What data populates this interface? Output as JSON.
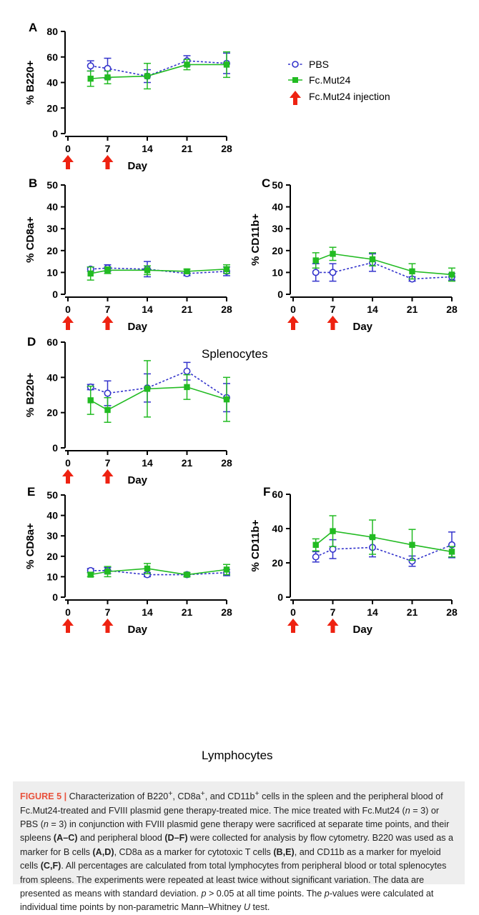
{
  "colors": {
    "pbs": "#3333cc",
    "mut": "#22bb22",
    "arrow": "#ee2211",
    "axis": "#000000"
  },
  "legend": {
    "pbs_label": "PBS",
    "mut_label": "Fc.Mut24",
    "arrow_label": "Fc.Mut24 injection"
  },
  "group_labels": {
    "splenocytes": "Splenocytes",
    "lymphocytes": "Lymphocytes"
  },
  "chart_data": [
    {
      "id": "A",
      "type": "line",
      "title": "",
      "panel_label": "A",
      "xlabel": "Day",
      "ylabel": "% B220+",
      "xticks": [
        0,
        7,
        14,
        21,
        28
      ],
      "yticks": [
        0,
        20,
        40,
        60,
        80
      ],
      "ylim": [
        0,
        80
      ],
      "xlim": [
        0,
        28
      ],
      "injection_days": [
        0,
        7
      ],
      "series": [
        {
          "name": "PBS",
          "x": [
            4,
            7,
            14,
            21,
            28
          ],
          "y": [
            53,
            51,
            45,
            57,
            55
          ],
          "err": [
            4,
            8,
            5,
            4,
            8
          ]
        },
        {
          "name": "Fc.Mut24",
          "x": [
            4,
            7,
            14,
            21,
            28
          ],
          "y": [
            43,
            44,
            45,
            54,
            54
          ],
          "err": [
            6,
            5,
            10,
            4,
            10
          ]
        }
      ]
    },
    {
      "id": "B",
      "type": "line",
      "title": "",
      "panel_label": "B",
      "xlabel": "Day",
      "ylabel": "% CD8a+",
      "xticks": [
        0,
        7,
        14,
        21,
        28
      ],
      "yticks": [
        0,
        10,
        20,
        30,
        40,
        50
      ],
      "ylim": [
        0,
        50
      ],
      "xlim": [
        0,
        28
      ],
      "injection_days": [
        0,
        7
      ],
      "series": [
        {
          "name": "PBS",
          "x": [
            4,
            7,
            14,
            21,
            28
          ],
          "y": [
            11.5,
            12,
            11.5,
            9.5,
            10.5
          ],
          "err": [
            1,
            1.5,
            3.5,
            1,
            2
          ]
        },
        {
          "name": "Fc.Mut24",
          "x": [
            4,
            7,
            14,
            21,
            28
          ],
          "y": [
            9.5,
            11,
            11,
            10.5,
            11.5
          ],
          "err": [
            3,
            1.5,
            2,
            1,
            2
          ]
        }
      ]
    },
    {
      "id": "C",
      "type": "line",
      "title": "",
      "panel_label": "C",
      "xlabel": "Day",
      "ylabel": "% CD11b+",
      "xticks": [
        0,
        7,
        14,
        21,
        28
      ],
      "yticks": [
        0,
        10,
        20,
        30,
        40,
        50
      ],
      "ylim": [
        0,
        50
      ],
      "xlim": [
        0,
        28
      ],
      "injection_days": [
        0,
        7
      ],
      "series": [
        {
          "name": "PBS",
          "x": [
            4,
            7,
            14,
            21,
            28
          ],
          "y": [
            10,
            10,
            14.5,
            7,
            8
          ],
          "err": [
            4,
            4,
            4,
            1,
            1.5
          ]
        },
        {
          "name": "Fc.Mut24",
          "x": [
            4,
            7,
            14,
            21,
            28
          ],
          "y": [
            15.5,
            18.5,
            16,
            10.5,
            9
          ],
          "err": [
            3.5,
            3,
            3,
            3.5,
            3
          ]
        }
      ]
    },
    {
      "id": "D",
      "type": "line",
      "title": "",
      "panel_label": "D",
      "xlabel": "Day",
      "ylabel": "% B220+",
      "xticks": [
        0,
        7,
        14,
        21,
        28
      ],
      "yticks": [
        0,
        20,
        40,
        60
      ],
      "ylim": [
        0,
        60
      ],
      "xlim": [
        0,
        28
      ],
      "injection_days": [
        0,
        7
      ],
      "series": [
        {
          "name": "PBS",
          "x": [
            4,
            7,
            14,
            21,
            28
          ],
          "y": [
            34.5,
            31,
            34,
            43.5,
            28.5
          ],
          "err": [
            1.5,
            7,
            8,
            5,
            8
          ]
        },
        {
          "name": "Fc.Mut24",
          "x": [
            4,
            7,
            14,
            21,
            28
          ],
          "y": [
            27,
            21.5,
            33.5,
            34.5,
            27.5
          ],
          "err": [
            8,
            7,
            16,
            7,
            12.5
          ]
        }
      ]
    },
    {
      "id": "E",
      "type": "line",
      "title": "",
      "panel_label": "E",
      "xlabel": "Day",
      "ylabel": "% CD8a+",
      "xticks": [
        0,
        7,
        14,
        21,
        28
      ],
      "yticks": [
        0,
        10,
        20,
        30,
        40,
        50
      ],
      "ylim": [
        0,
        50
      ],
      "xlim": [
        0,
        28
      ],
      "injection_days": [
        0,
        7
      ],
      "series": [
        {
          "name": "PBS",
          "x": [
            4,
            7,
            14,
            21,
            28
          ],
          "y": [
            13,
            13,
            11,
            11,
            12
          ],
          "err": [
            1,
            1.5,
            1,
            1,
            1.5
          ]
        },
        {
          "name": "Fc.Mut24",
          "x": [
            4,
            7,
            14,
            21,
            28
          ],
          "y": [
            11,
            12.5,
            14,
            11,
            13.5
          ],
          "err": [
            1,
            2.5,
            2.5,
            1,
            2.5
          ]
        }
      ]
    },
    {
      "id": "F",
      "type": "line",
      "title": "",
      "panel_label": "F",
      "xlabel": "Day",
      "ylabel": "% CD11b+",
      "xticks": [
        0,
        7,
        14,
        21,
        28
      ],
      "yticks": [
        0,
        20,
        40,
        60
      ],
      "ylim": [
        0,
        60
      ],
      "xlim": [
        0,
        28
      ],
      "injection_days": [
        0,
        7
      ],
      "series": [
        {
          "name": "PBS",
          "x": [
            4,
            7,
            14,
            21,
            28
          ],
          "y": [
            23.5,
            28,
            29,
            21,
            30.5
          ],
          "err": [
            3,
            5.5,
            5.5,
            3,
            7.5
          ]
        },
        {
          "name": "Fc.Mut24",
          "x": [
            4,
            7,
            14,
            21,
            28
          ],
          "y": [
            30.5,
            38.5,
            35,
            30.5,
            26.5
          ],
          "err": [
            3.5,
            9,
            10,
            9,
            3
          ]
        }
      ]
    }
  ],
  "caption": {
    "fig_label": "FIGURE 5 |",
    "t1": " Characterization of B220",
    "sup1": "+",
    "t2": ", CD8a",
    "sup2": "+",
    "t3": ", and CD11b",
    "sup3": "+",
    "t4": " cells in the spleen and the peripheral blood of Fc.Mut24-treated and FVIII plasmid gene therapy-treated mice. The mice treated with Fc.Mut24 (",
    "n1": "n",
    "t5": " = 3) or PBS (",
    "n2": "n",
    "t6": " = 3) in conjunction with FVIII plasmid gene therapy were sacrificed at separate time points, and their spleens ",
    "b1": "(A–C)",
    "t7": " and peripheral blood ",
    "b2": "(D–F)",
    "t8": " were collected for analysis by flow cytometry. B220 was used as a marker for B cells ",
    "b3": "(A,D)",
    "t9": ", CD8a as a marker for cytotoxic T cells ",
    "b4": "(B,E)",
    "t10": ", and CD11b as a marker for myeloid cells ",
    "b5": "(C,F)",
    "t11": ". All percentages are calculated from total lymphocytes from peripheral blood or total splenocytes from spleens. The experiments were repeated at least twice without significant variation. The data are presented as means with standard deviation. ",
    "p1": "p",
    "t12": " > 0.05 at all time points. The ",
    "p2": "p",
    "t13": "-values were calculated at individual time points by non-parametric Mann–Whitney ",
    "u": "U",
    "t14": " test."
  }
}
